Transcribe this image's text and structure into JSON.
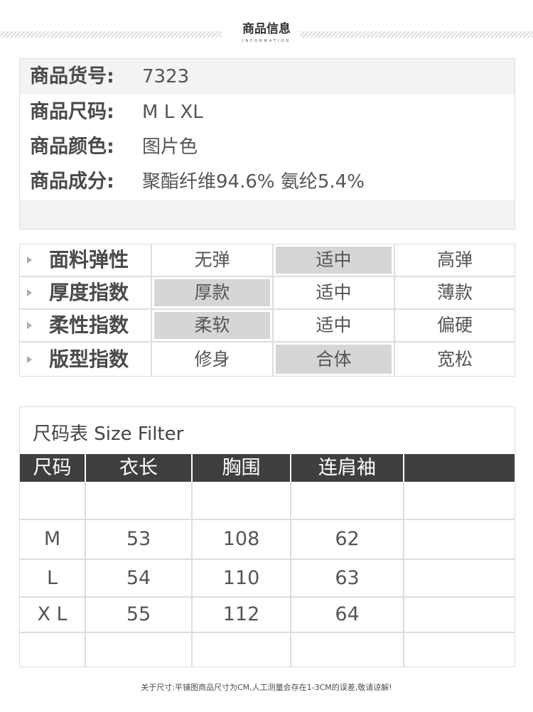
{
  "header": {
    "title": "商品信息",
    "subtitle": "INFORMATION"
  },
  "info": [
    {
      "label": "商品货号:",
      "value": "7323"
    },
    {
      "label": "商品尺码:",
      "value": "M L XL"
    },
    {
      "label": "商品颜色:",
      "value": "图片色"
    },
    {
      "label": "商品成分:",
      "value": "聚酯纤维94.6% 氨纶5.4%"
    }
  ],
  "attributes": [
    {
      "name": "面料弹性",
      "options": [
        "无弹",
        "适中",
        "高弹"
      ],
      "selected": 1
    },
    {
      "name": "厚度指数",
      "options": [
        "厚款",
        "适中",
        "薄款"
      ],
      "selected": 0
    },
    {
      "name": "柔性指数",
      "options": [
        "柔软",
        "适中",
        "偏硬"
      ],
      "selected": 0
    },
    {
      "name": "版型指数",
      "options": [
        "修身",
        "合体",
        "宽松"
      ],
      "selected": 1
    }
  ],
  "size_table": {
    "title": "尺码表 Size Filter",
    "headers": [
      "尺码",
      "衣长",
      "胸围",
      "连肩袖",
      ""
    ],
    "rows": [
      [
        "",
        "",
        "",
        "",
        ""
      ],
      [
        "M",
        "53",
        "108",
        "62",
        ""
      ],
      [
        "L",
        "54",
        "110",
        "63",
        ""
      ],
      [
        "X L",
        "55",
        "112",
        "64",
        ""
      ],
      [
        "",
        "",
        "",
        "",
        ""
      ]
    ]
  },
  "note": "关于尺寸:平铺图商品尺寸为CM,人工测量会存在1-3CM的误差,敬请谅解!"
}
